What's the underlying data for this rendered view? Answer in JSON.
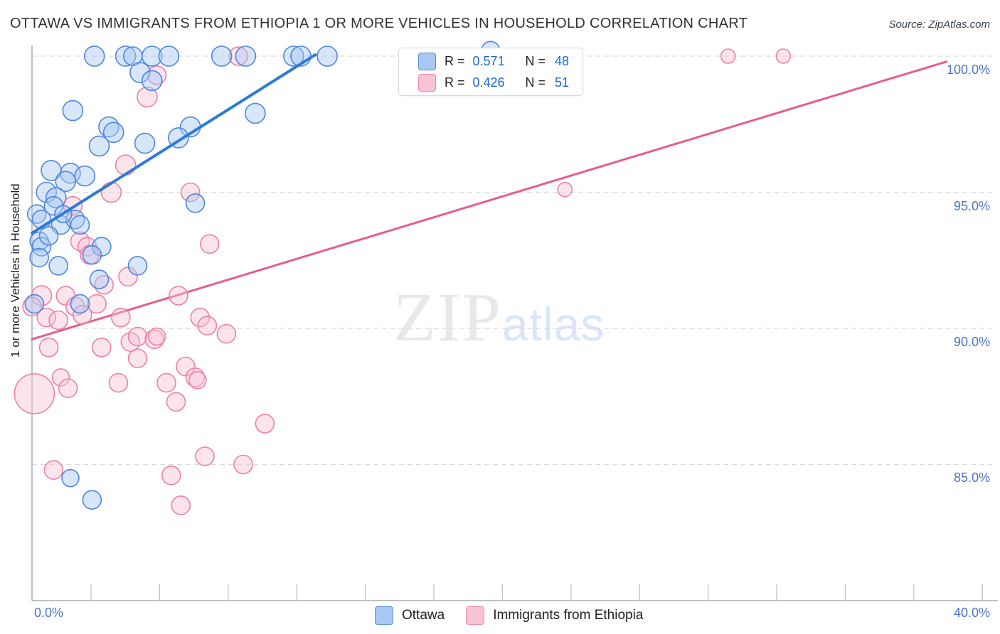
{
  "title": "OTTAWA VS IMMIGRANTS FROM ETHIOPIA 1 OR MORE VEHICLES IN HOUSEHOLD CORRELATION CHART",
  "source": "Source: ZipAtlas.com",
  "watermark": {
    "zip": "ZIP",
    "atlas": "atlas"
  },
  "y_axis": {
    "label": "1 or more Vehicles in Household",
    "ticks": [
      "100.0%",
      "95.0%",
      "90.0%",
      "85.0%"
    ],
    "tick_values": [
      100,
      95,
      90,
      85
    ]
  },
  "x_axis": {
    "min_label": "0.0%",
    "max_label": "40.0%",
    "min": 0,
    "max": 40
  },
  "legend_box": {
    "rows": [
      {
        "series": "Ottawa",
        "r_label": "R = ",
        "r_value": "0.571",
        "n_label": "N = ",
        "n_value": "48"
      },
      {
        "series": "Immigrants from Ethiopia",
        "r_label": "R = ",
        "r_value": "0.426",
        "n_label": "N = ",
        "n_value": "51"
      }
    ]
  },
  "bottom_legend": [
    {
      "label": "Ottawa"
    },
    {
      "label": "Immigrants from Ethiopia"
    }
  ],
  "colors": {
    "blue_fill": "#a8c8f3",
    "blue_stroke": "#4e86dc",
    "blue_trend": "#2e7bd6",
    "pink_fill": "#f8c3d6",
    "pink_stroke": "#ee7fa6",
    "pink_trend": "#e75c8e",
    "grid": "#d8dadd",
    "axis": "#a6abb1",
    "tick": "#c0c3c7",
    "tick_label": "#4b74c8",
    "value_blue": "#1b66d2"
  },
  "chart_data": {
    "type": "scatter",
    "title": "Ottawa vs Immigrants from Ethiopia 1 or more Vehicles in Household",
    "xlabel_range": [
      "0.0%",
      "40.0%"
    ],
    "ylabel": "1 or more Vehicles in Household",
    "xlim": [
      0,
      40
    ],
    "ylim": [
      80,
      100.4
    ],
    "grid": "horizontal-dashed",
    "legend_position": "top-center and bottom-center",
    "series": [
      {
        "name": "Ottawa",
        "R": 0.571,
        "N": 48,
        "points": [
          [
            2.6,
            100.0,
            14
          ],
          [
            3.9,
            100.0,
            14
          ],
          [
            4.2,
            100.0,
            13
          ],
          [
            5.0,
            100.0,
            14
          ],
          [
            5.7,
            100.0,
            14
          ],
          [
            7.9,
            100.0,
            14
          ],
          [
            8.9,
            100.0,
            14
          ],
          [
            10.9,
            100.0,
            14
          ],
          [
            11.2,
            100.0,
            14
          ],
          [
            12.3,
            100.0,
            14
          ],
          [
            19.1,
            100.2,
            13
          ],
          [
            4.5,
            99.4,
            14
          ],
          [
            5.0,
            99.1,
            14
          ],
          [
            1.7,
            98.0,
            14
          ],
          [
            3.2,
            97.4,
            14
          ],
          [
            3.4,
            97.2,
            14
          ],
          [
            9.3,
            97.9,
            14
          ],
          [
            6.6,
            97.4,
            14
          ],
          [
            2.8,
            96.7,
            14
          ],
          [
            4.7,
            96.8,
            14
          ],
          [
            6.1,
            97.0,
            14
          ],
          [
            0.8,
            95.8,
            14
          ],
          [
            1.6,
            95.7,
            14
          ],
          [
            1.4,
            95.4,
            14
          ],
          [
            2.2,
            95.6,
            14
          ],
          [
            0.6,
            95.0,
            14
          ],
          [
            1.0,
            94.8,
            14
          ],
          [
            0.9,
            94.5,
            13
          ],
          [
            6.8,
            94.6,
            13
          ],
          [
            0.2,
            94.2,
            13
          ],
          [
            0.4,
            94.0,
            13
          ],
          [
            1.2,
            93.8,
            13
          ],
          [
            1.8,
            94.0,
            13
          ],
          [
            2.0,
            93.8,
            13
          ],
          [
            0.3,
            93.2,
            13
          ],
          [
            0.4,
            93.0,
            13
          ],
          [
            0.7,
            93.4,
            13
          ],
          [
            0.3,
            92.6,
            13
          ],
          [
            1.1,
            92.3,
            13
          ],
          [
            2.9,
            93.0,
            13
          ],
          [
            2.5,
            92.7,
            13
          ],
          [
            4.4,
            92.3,
            13
          ],
          [
            2.8,
            91.8,
            13
          ],
          [
            2.0,
            90.9,
            13
          ],
          [
            0.1,
            90.9,
            13
          ],
          [
            1.3,
            94.2,
            12
          ],
          [
            1.6,
            84.5,
            12
          ],
          [
            2.5,
            83.7,
            13
          ]
        ]
      },
      {
        "name": "Immigrants from Ethiopia",
        "R": 0.426,
        "N": 51,
        "points": [
          [
            8.6,
            100.0,
            13
          ],
          [
            29.0,
            100.0,
            10
          ],
          [
            31.3,
            100.0,
            10
          ],
          [
            5.2,
            99.3,
            13
          ],
          [
            4.8,
            98.5,
            14
          ],
          [
            3.9,
            96.0,
            14
          ],
          [
            3.3,
            95.0,
            14
          ],
          [
            6.6,
            95.0,
            13
          ],
          [
            1.7,
            94.5,
            13
          ],
          [
            2.0,
            93.2,
            13
          ],
          [
            2.3,
            93.0,
            13
          ],
          [
            2.4,
            92.7,
            13
          ],
          [
            3.0,
            91.6,
            13
          ],
          [
            4.0,
            91.9,
            13
          ],
          [
            7.4,
            93.1,
            13
          ],
          [
            0.4,
            91.2,
            14
          ],
          [
            1.4,
            91.2,
            13
          ],
          [
            1.8,
            90.8,
            13
          ],
          [
            2.7,
            90.9,
            13
          ],
          [
            0.0,
            90.8,
            13
          ],
          [
            0.6,
            90.4,
            13
          ],
          [
            1.1,
            90.3,
            13
          ],
          [
            2.1,
            90.5,
            13
          ],
          [
            3.7,
            90.4,
            13
          ],
          [
            6.1,
            91.2,
            13
          ],
          [
            7.0,
            90.4,
            13
          ],
          [
            7.3,
            90.1,
            13
          ],
          [
            8.1,
            89.8,
            13
          ],
          [
            0.7,
            89.3,
            13
          ],
          [
            2.9,
            89.3,
            13
          ],
          [
            4.1,
            89.5,
            13
          ],
          [
            4.4,
            89.7,
            13
          ],
          [
            5.1,
            89.6,
            13
          ],
          [
            5.2,
            89.7,
            12
          ],
          [
            4.4,
            88.9,
            13
          ],
          [
            6.4,
            88.6,
            13
          ],
          [
            6.8,
            88.2,
            13
          ],
          [
            1.2,
            88.2,
            12
          ],
          [
            1.5,
            87.8,
            13
          ],
          [
            0.1,
            87.6,
            28
          ],
          [
            3.6,
            88.0,
            13
          ],
          [
            5.6,
            88.0,
            13
          ],
          [
            6.9,
            88.1,
            12
          ],
          [
            6.0,
            87.3,
            13
          ],
          [
            9.7,
            86.5,
            13
          ],
          [
            7.2,
            85.3,
            13
          ],
          [
            8.8,
            85.0,
            13
          ],
          [
            0.9,
            84.8,
            13
          ],
          [
            5.8,
            84.6,
            13
          ],
          [
            6.2,
            83.5,
            13
          ],
          [
            22.2,
            95.1,
            10
          ]
        ]
      }
    ],
    "trendlines": [
      {
        "series": "Ottawa",
        "x1": 0,
        "y1": 93.5,
        "x2": 11.8,
        "y2": 100.05
      },
      {
        "series": "Immigrants from Ethiopia",
        "x1": 0,
        "y1": 89.6,
        "x2": 38.1,
        "y2": 99.8
      }
    ]
  }
}
